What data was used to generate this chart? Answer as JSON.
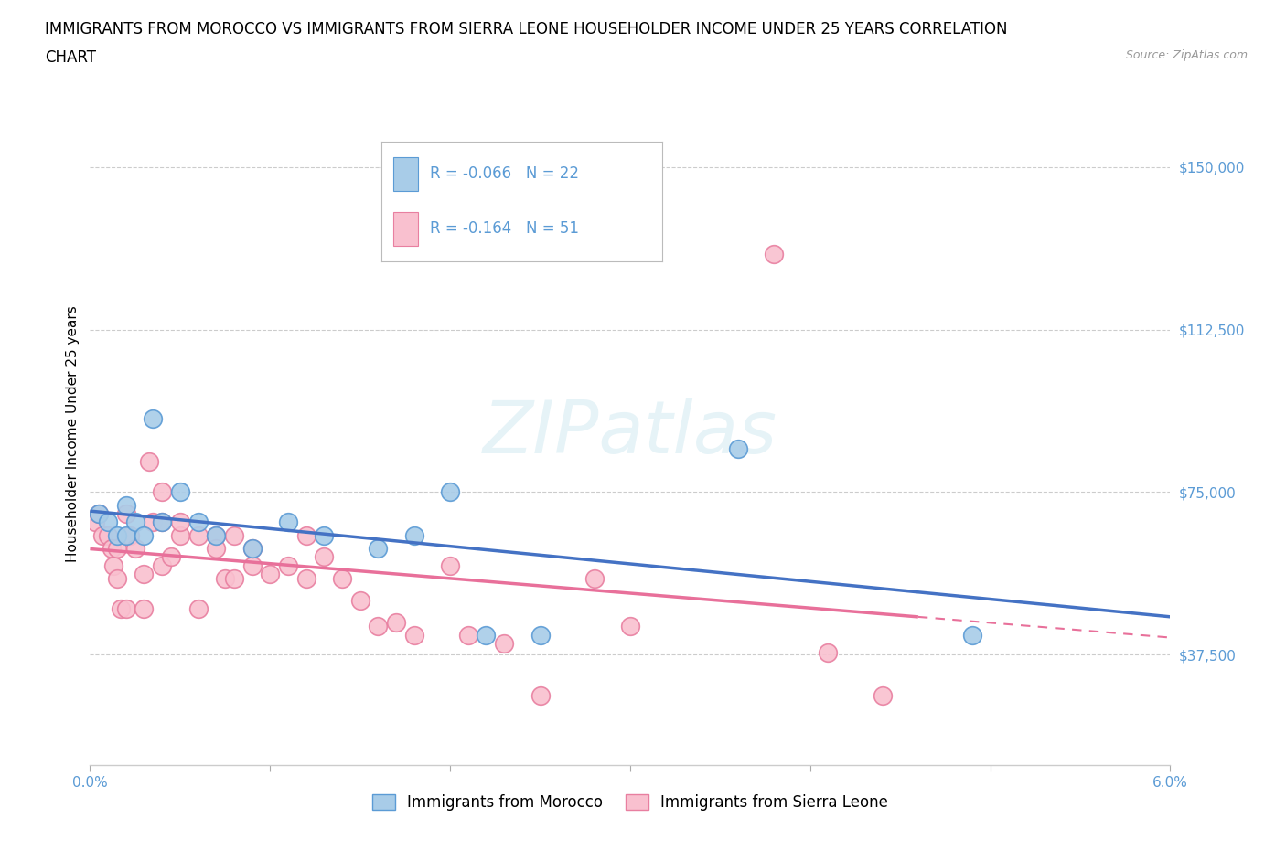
{
  "title_line1": "IMMIGRANTS FROM MOROCCO VS IMMIGRANTS FROM SIERRA LEONE HOUSEHOLDER INCOME UNDER 25 YEARS CORRELATION",
  "title_line2": "CHART",
  "source_text": "Source: ZipAtlas.com",
  "ylabel": "Householder Income Under 25 years",
  "xlim": [
    0.0,
    0.06
  ],
  "ylim": [
    12000,
    165000
  ],
  "yticks": [
    37500,
    75000,
    112500,
    150000
  ],
  "ytick_labels": [
    "$37,500",
    "$75,000",
    "$112,500",
    "$150,000"
  ],
  "xticks": [
    0.0,
    0.01,
    0.02,
    0.03,
    0.04,
    0.05,
    0.06
  ],
  "xtick_labels": [
    "0.0%",
    "",
    "",
    "",
    "",
    "",
    "6.0%"
  ],
  "morocco_R": -0.066,
  "morocco_N": 22,
  "sierraleone_R": -0.164,
  "sierraleone_N": 51,
  "morocco_color": "#a8cce8",
  "sierraleone_color": "#f9c0cf",
  "morocco_edge_color": "#5b9bd5",
  "sierraleone_edge_color": "#e87fa0",
  "trend_morocco_color": "#4472c4",
  "trend_sierraleone_color": "#e8709a",
  "background_color": "#ffffff",
  "grid_color": "#cccccc",
  "axis_label_color": "#5b9bd5",
  "watermark_text": "ZIPatlas",
  "morocco_x": [
    0.0005,
    0.001,
    0.0015,
    0.002,
    0.002,
    0.0025,
    0.003,
    0.0035,
    0.004,
    0.005,
    0.006,
    0.007,
    0.009,
    0.011,
    0.013,
    0.016,
    0.018,
    0.02,
    0.022,
    0.025,
    0.036,
    0.049
  ],
  "morocco_y": [
    70000,
    68000,
    65000,
    72000,
    65000,
    68000,
    65000,
    92000,
    68000,
    75000,
    68000,
    65000,
    62000,
    68000,
    65000,
    62000,
    65000,
    75000,
    42000,
    42000,
    85000,
    42000
  ],
  "sierraleone_x": [
    0.0003,
    0.0005,
    0.0007,
    0.001,
    0.0012,
    0.0013,
    0.0015,
    0.0015,
    0.0017,
    0.002,
    0.002,
    0.0022,
    0.0025,
    0.003,
    0.003,
    0.0033,
    0.0035,
    0.004,
    0.004,
    0.004,
    0.0045,
    0.005,
    0.005,
    0.006,
    0.006,
    0.007,
    0.007,
    0.0075,
    0.008,
    0.008,
    0.009,
    0.009,
    0.01,
    0.011,
    0.012,
    0.012,
    0.013,
    0.014,
    0.015,
    0.016,
    0.017,
    0.018,
    0.02,
    0.021,
    0.023,
    0.025,
    0.028,
    0.03,
    0.038,
    0.041,
    0.044
  ],
  "sierraleone_y": [
    68000,
    70000,
    65000,
    65000,
    62000,
    58000,
    55000,
    62000,
    48000,
    48000,
    70000,
    65000,
    62000,
    48000,
    56000,
    82000,
    68000,
    58000,
    75000,
    68000,
    60000,
    65000,
    68000,
    65000,
    48000,
    65000,
    62000,
    55000,
    55000,
    65000,
    58000,
    62000,
    56000,
    58000,
    55000,
    65000,
    60000,
    55000,
    50000,
    44000,
    45000,
    42000,
    58000,
    42000,
    40000,
    28000,
    55000,
    44000,
    130000,
    38000,
    28000
  ],
  "title_fontsize": 12,
  "axis_fontsize": 11,
  "tick_fontsize": 11,
  "legend_fontsize": 12,
  "marker_size": 200
}
